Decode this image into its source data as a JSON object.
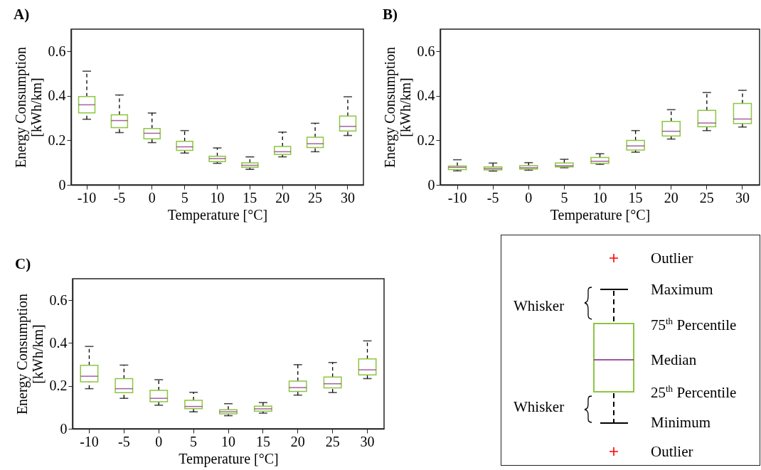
{
  "chart_data": [
    {
      "type": "box",
      "title": "A)",
      "xlabel": "Temperature [°C]",
      "ylabel": "Energy Consumption\n[kWh/km]",
      "categories": [
        "-10",
        "-5",
        "0",
        "5",
        "10",
        "15",
        "20",
        "25",
        "30"
      ],
      "ylim": [
        0,
        0.7
      ],
      "yticks": [
        0,
        0.2,
        0.4,
        0.6
      ],
      "series": [
        {
          "color": "#8dc63f",
          "boxes": [
            {
              "low": 0.295,
              "q1": 0.324,
              "median": 0.36,
              "q3": 0.397,
              "high": 0.511
            },
            {
              "low": 0.235,
              "q1": 0.257,
              "median": 0.289,
              "q3": 0.315,
              "high": 0.404
            },
            {
              "low": 0.19,
              "q1": 0.207,
              "median": 0.232,
              "q3": 0.253,
              "high": 0.323
            },
            {
              "low": 0.143,
              "q1": 0.155,
              "median": 0.171,
              "q3": 0.196,
              "high": 0.244
            },
            {
              "low": 0.097,
              "q1": 0.105,
              "median": 0.118,
              "q3": 0.129,
              "high": 0.166
            },
            {
              "low": 0.07,
              "q1": 0.079,
              "median": 0.088,
              "q3": 0.099,
              "high": 0.126
            },
            {
              "low": 0.126,
              "q1": 0.137,
              "median": 0.149,
              "q3": 0.173,
              "high": 0.237
            },
            {
              "low": 0.149,
              "q1": 0.168,
              "median": 0.185,
              "q3": 0.214,
              "high": 0.277
            },
            {
              "low": 0.222,
              "q1": 0.242,
              "median": 0.263,
              "q3": 0.309,
              "high": 0.396
            }
          ]
        }
      ]
    },
    {
      "type": "box",
      "title": "B)",
      "xlabel": "Temperature [°C]",
      "ylabel": "Energy Consumption\n[kWh/km]",
      "categories": [
        "-10",
        "-5",
        "0",
        "5",
        "10",
        "15",
        "20",
        "25",
        "30"
      ],
      "ylim": [
        0,
        0.7
      ],
      "yticks": [
        0,
        0.2,
        0.4,
        0.6
      ],
      "series": [
        {
          "color": "#8dc63f",
          "boxes": [
            {
              "low": 0.063,
              "q1": 0.069,
              "median": 0.079,
              "q3": 0.085,
              "high": 0.113
            },
            {
              "low": 0.062,
              "q1": 0.067,
              "median": 0.073,
              "q3": 0.081,
              "high": 0.098
            },
            {
              "low": 0.066,
              "q1": 0.071,
              "median": 0.077,
              "q3": 0.086,
              "high": 0.1
            },
            {
              "low": 0.077,
              "q1": 0.081,
              "median": 0.086,
              "q3": 0.098,
              "high": 0.115
            },
            {
              "low": 0.092,
              "q1": 0.097,
              "median": 0.106,
              "q3": 0.123,
              "high": 0.14
            },
            {
              "low": 0.147,
              "q1": 0.157,
              "median": 0.175,
              "q3": 0.2,
              "high": 0.244
            },
            {
              "low": 0.206,
              "q1": 0.22,
              "median": 0.241,
              "q3": 0.285,
              "high": 0.338
            },
            {
              "low": 0.244,
              "q1": 0.261,
              "median": 0.278,
              "q3": 0.335,
              "high": 0.415
            },
            {
              "low": 0.26,
              "q1": 0.276,
              "median": 0.296,
              "q3": 0.366,
              "high": 0.425
            }
          ]
        }
      ]
    },
    {
      "type": "box",
      "title": "C)",
      "xlabel": "Temperature [°C]",
      "ylabel": "Energy Consumption\n[kWh/km]",
      "categories": [
        "-10",
        "-5",
        "0",
        "5",
        "10",
        "15",
        "20",
        "25",
        "30"
      ],
      "ylim": [
        0,
        0.7
      ],
      "yticks": [
        0,
        0.2,
        0.4,
        0.6
      ],
      "series": [
        {
          "color": "#8dc63f",
          "boxes": [
            {
              "low": 0.187,
              "q1": 0.219,
              "median": 0.245,
              "q3": 0.296,
              "high": 0.384
            },
            {
              "low": 0.142,
              "q1": 0.168,
              "median": 0.187,
              "q3": 0.234,
              "high": 0.297
            },
            {
              "low": 0.11,
              "q1": 0.126,
              "median": 0.142,
              "q3": 0.179,
              "high": 0.229
            },
            {
              "low": 0.079,
              "q1": 0.094,
              "median": 0.104,
              "q3": 0.133,
              "high": 0.17
            },
            {
              "low": 0.061,
              "q1": 0.07,
              "median": 0.079,
              "q3": 0.089,
              "high": 0.117
            },
            {
              "low": 0.073,
              "q1": 0.082,
              "median": 0.093,
              "q3": 0.105,
              "high": 0.122
            },
            {
              "low": 0.157,
              "q1": 0.174,
              "median": 0.192,
              "q3": 0.222,
              "high": 0.299
            },
            {
              "low": 0.169,
              "q1": 0.191,
              "median": 0.21,
              "q3": 0.241,
              "high": 0.309
            },
            {
              "low": 0.234,
              "q1": 0.251,
              "median": 0.275,
              "q3": 0.326,
              "high": 0.41
            }
          ]
        }
      ]
    },
    {
      "type": "other",
      "annotations": [
        "Outlier",
        "Maximum",
        "Whisker",
        "75$^{th}$ Percentile",
        "Median",
        "25$^{th}$ Percentile",
        "Whisker",
        "Minimum",
        "Outlier"
      ]
    }
  ]
}
